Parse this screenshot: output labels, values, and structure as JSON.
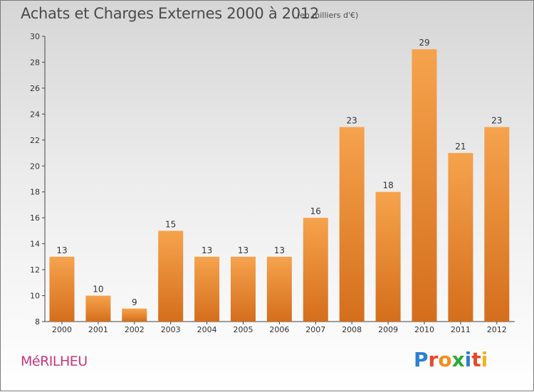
{
  "header": {
    "title": "Achats et Charges Externes 2000 à 2012",
    "unit": "(en milliers d'€)"
  },
  "footer": {
    "town": "MéRILHEU",
    "logo_text": "Proxiti"
  },
  "colors": {
    "bar_top": "#f6a34d",
    "bar_bottom": "#d46e1c",
    "axis": "#444444",
    "town": "#c8357a",
    "logo_letters": [
      "#2c7fd1",
      "#e7472c",
      "#f28e1c",
      "#2fa83a",
      "#2c7fd1",
      "#e7472c",
      "#f0b21c"
    ]
  },
  "chart_data": {
    "type": "bar",
    "title": "Achats et Charges Externes 2000 à 2012",
    "subtitle": "(en milliers d'€)",
    "categories": [
      "2000",
      "2001",
      "2002",
      "2003",
      "2004",
      "2005",
      "2006",
      "2007",
      "2008",
      "2009",
      "2010",
      "2011",
      "2012"
    ],
    "values": [
      13,
      10,
      9,
      15,
      13,
      13,
      13,
      16,
      23,
      18,
      29,
      21,
      23
    ],
    "ylim": [
      8,
      30
    ],
    "yticks": [
      8,
      10,
      12,
      14,
      16,
      18,
      20,
      22,
      24,
      26,
      28,
      30
    ],
    "grid": false,
    "xlabel": "",
    "ylabel": ""
  }
}
